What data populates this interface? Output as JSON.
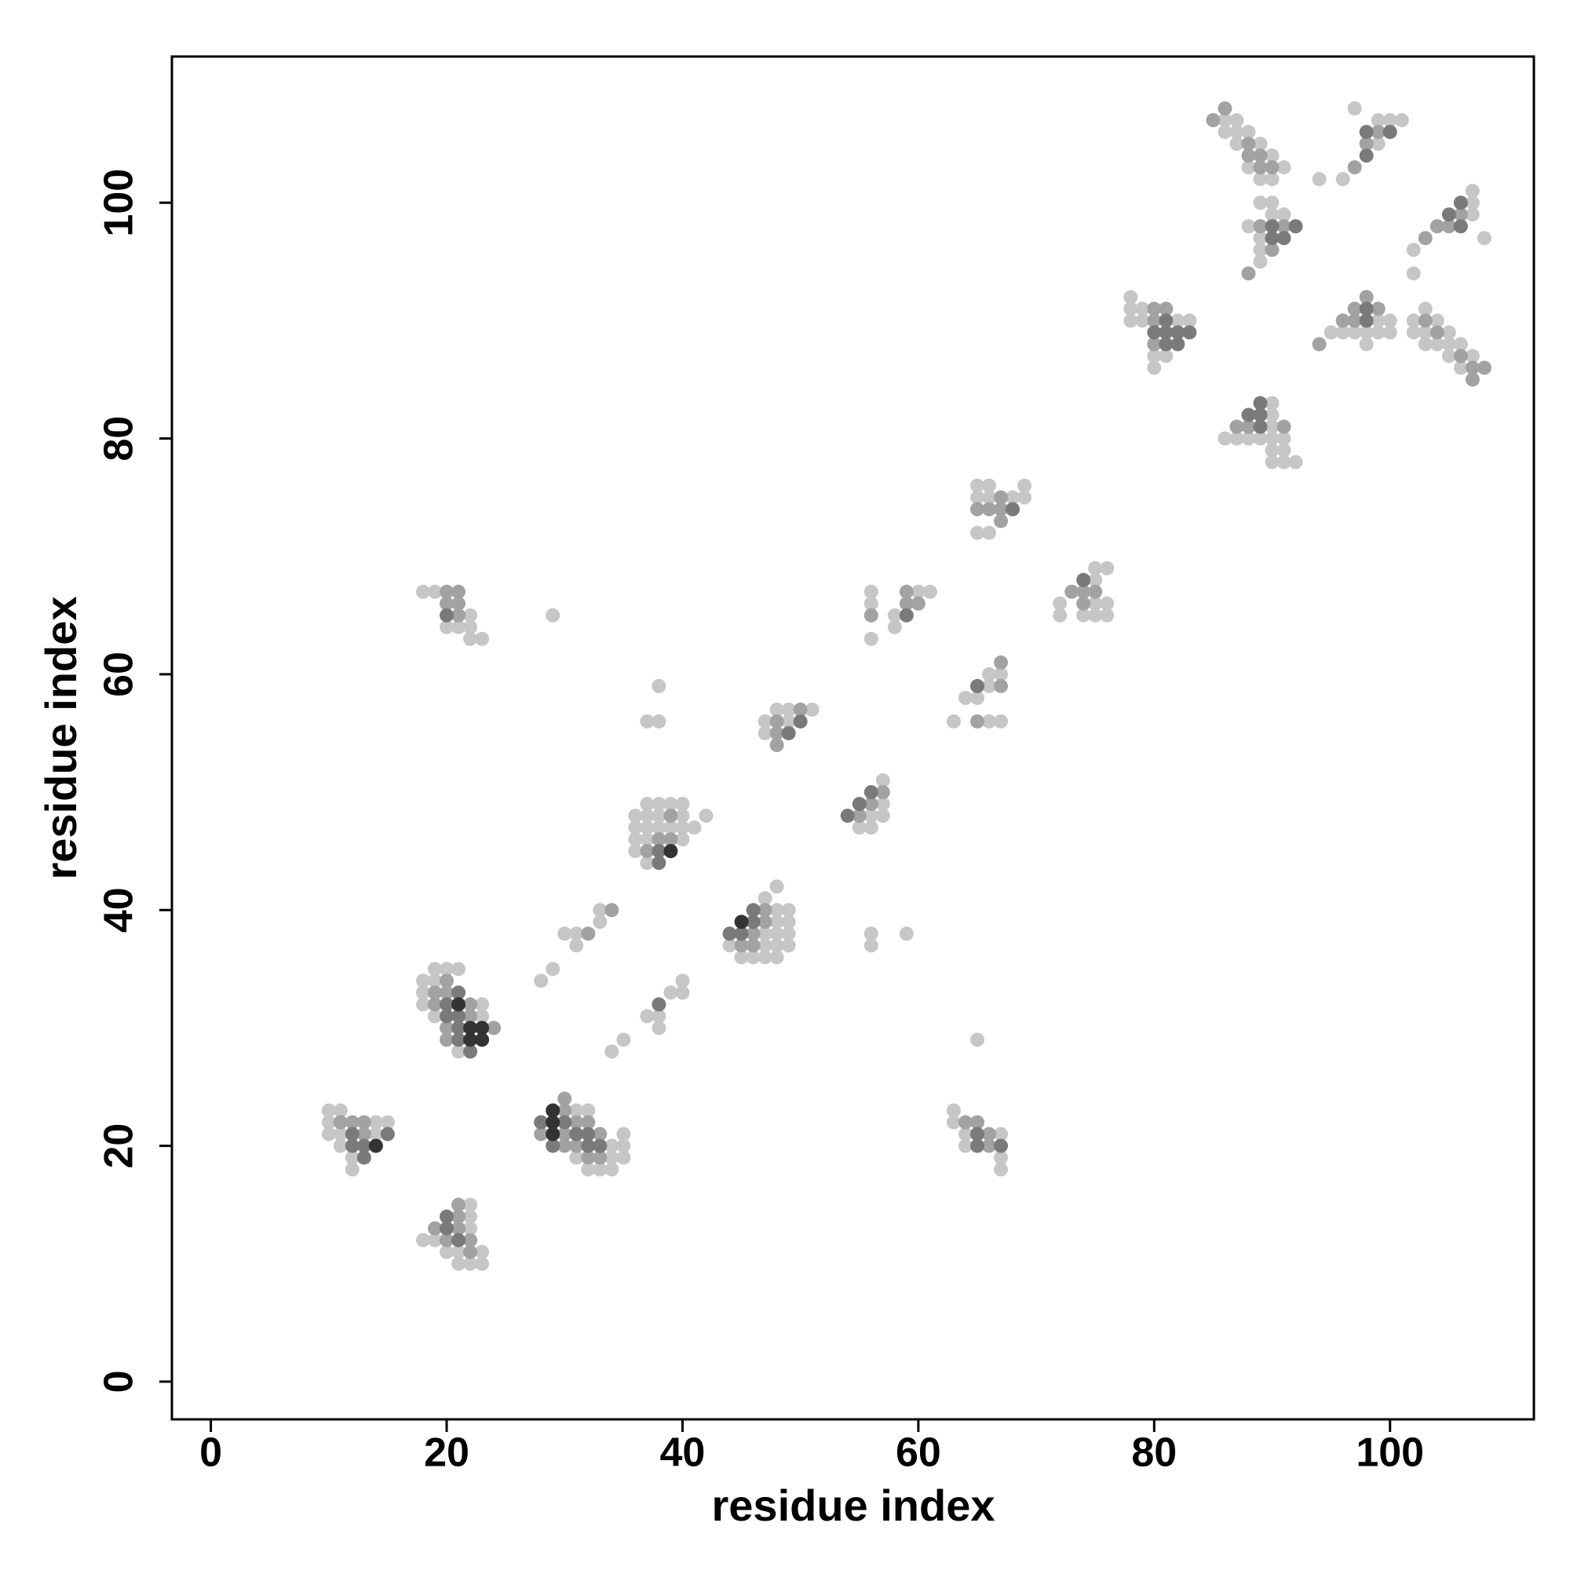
{
  "chart_data": {
    "type": "scatter",
    "xlabel": "residue index",
    "ylabel": "residue index",
    "xlim": [
      -3.3,
      112.2
    ],
    "ylim": [
      -3.2,
      112.4
    ],
    "xticks": [
      0,
      20,
      40,
      60,
      80,
      100
    ],
    "yticks": [
      0,
      20,
      40,
      60,
      80,
      100
    ],
    "series": [
      {
        "color": "#c6c6c6",
        "x": [
          10,
          11,
          10,
          14,
          15,
          10,
          11,
          14,
          11,
          12,
          12,
          22,
          22,
          22,
          18,
          19,
          20,
          21,
          23,
          21,
          22,
          23,
          19,
          20,
          21,
          18,
          19,
          18,
          18,
          23,
          19,
          23,
          21,
          18,
          19,
          22,
          20,
          21,
          22,
          22,
          23,
          29,
          31,
          32,
          35,
          34,
          35,
          31,
          34,
          35,
          32,
          33,
          34,
          28,
          29,
          30,
          31,
          31,
          33,
          33,
          34,
          35,
          37,
          38,
          38,
          39,
          40,
          40,
          37,
          38,
          39,
          40,
          36,
          37,
          38,
          40,
          42,
          36,
          37,
          38,
          39,
          40,
          41,
          36,
          37,
          40,
          36,
          37,
          37,
          38,
          38,
          48,
          47,
          48,
          49,
          48,
          49,
          47,
          48,
          49,
          44,
          47,
          48,
          49,
          45,
          46,
          47,
          48,
          48,
          49,
          51,
          47,
          49,
          47,
          57,
          57,
          56,
          57,
          55,
          56,
          56,
          56,
          59,
          65,
          56,
          56,
          56,
          58,
          58,
          60,
          61,
          63,
          64,
          65,
          66,
          66,
          67,
          66,
          67,
          63,
          63,
          64,
          64,
          67,
          67,
          67,
          65,
          66,
          65,
          66,
          68,
          69,
          69,
          65,
          66,
          72,
          72,
          74,
          75,
          75,
          75,
          75,
          76,
          76,
          76,
          78,
          78,
          78,
          79,
          79,
          80,
          80,
          81,
          82,
          83,
          86,
          87,
          88,
          89,
          90,
          90,
          90,
          90,
          90,
          90,
          91,
          91,
          91,
          92,
          86,
          86,
          87,
          87,
          87,
          88,
          88,
          89,
          89,
          90,
          90,
          91,
          88,
          89,
          89,
          89,
          89,
          90,
          90,
          91,
          95,
          96,
          97,
          98,
          98,
          99,
          99,
          100,
          100,
          94,
          96,
          97,
          99,
          99,
          100,
          101,
          102,
          102,
          107,
          107,
          107,
          108,
          102,
          102,
          103,
          103,
          103,
          104,
          104,
          105,
          105,
          105,
          106,
          106,
          107
        ],
        "values": [
          23,
          23,
          22,
          22,
          22,
          21,
          21,
          21,
          20,
          19,
          18,
          15,
          14,
          13,
          12,
          12,
          11,
          11,
          11,
          10,
          10,
          10,
          35,
          35,
          35,
          34,
          34,
          33,
          32,
          32,
          31,
          31,
          28,
          67,
          67,
          65,
          64,
          64,
          64,
          63,
          63,
          65,
          23,
          23,
          21,
          20,
          20,
          19,
          19,
          19,
          18,
          18,
          18,
          34,
          35,
          38,
          38,
          37,
          39,
          40,
          28,
          29,
          31,
          31,
          30,
          33,
          33,
          34,
          49,
          49,
          49,
          49,
          48,
          48,
          48,
          48,
          48,
          47,
          47,
          47,
          47,
          47,
          47,
          46,
          46,
          46,
          45,
          44,
          56,
          56,
          59,
          42,
          41,
          40,
          40,
          39,
          39,
          38,
          38,
          38,
          37,
          37,
          37,
          37,
          36,
          36,
          36,
          36,
          57,
          57,
          57,
          56,
          56,
          55,
          51,
          49,
          48,
          48,
          47,
          47,
          38,
          37,
          38,
          29,
          67,
          66,
          63,
          65,
          64,
          67,
          67,
          56,
          58,
          58,
          59,
          60,
          60,
          56,
          56,
          23,
          22,
          21,
          20,
          21,
          19,
          18,
          76,
          76,
          75,
          75,
          75,
          76,
          75,
          72,
          72,
          66,
          65,
          65,
          69,
          68,
          66,
          65,
          69,
          66,
          65,
          92,
          91,
          90,
          91,
          90,
          87,
          86,
          87,
          90,
          90,
          80,
          80,
          80,
          80,
          83,
          82,
          81,
          80,
          79,
          78,
          80,
          79,
          78,
          78,
          107,
          106,
          107,
          106,
          105,
          106,
          103,
          105,
          102,
          104,
          102,
          103,
          98,
          100,
          97,
          96,
          95,
          100,
          99,
          99,
          89,
          89,
          89,
          89,
          88,
          90,
          89,
          90,
          89,
          102,
          102,
          108,
          107,
          105,
          107,
          107,
          96,
          94,
          101,
          100,
          99,
          97,
          90,
          89,
          91,
          89,
          88,
          90,
          88,
          89,
          88,
          87,
          88,
          86,
          87
        ]
      },
      {
        "color": "#a2a2a2",
        "x": [
          11,
          12,
          13,
          13,
          21,
          21,
          19,
          21,
          20,
          22,
          22,
          20,
          19,
          20,
          19,
          22,
          22,
          20,
          24,
          20,
          20,
          21,
          20,
          21,
          21,
          30,
          30,
          31,
          32,
          28,
          30,
          33,
          30,
          31,
          32,
          33,
          32,
          34,
          39,
          38,
          39,
          37,
          47,
          47,
          46,
          45,
          46,
          50,
          48,
          48,
          48,
          57,
          56,
          55,
          56,
          59,
          59,
          60,
          67,
          67,
          65,
          64,
          65,
          66,
          66,
          67,
          65,
          66,
          67,
          67,
          73,
          74,
          74,
          75,
          80,
          80,
          80,
          81,
          87,
          88,
          91,
          85,
          86,
          88,
          88,
          89,
          89,
          90,
          88,
          89,
          90,
          91,
          94,
          96,
          97,
          97,
          98,
          99,
          97,
          98,
          99,
          103,
          104,
          105,
          106,
          103,
          104,
          106,
          107,
          107,
          108
        ],
        "values": [
          22,
          22,
          22,
          21,
          15,
          14,
          13,
          13,
          12,
          12,
          11,
          34,
          33,
          33,
          32,
          32,
          31,
          30,
          30,
          29,
          67,
          67,
          66,
          66,
          65,
          24,
          23,
          22,
          22,
          21,
          21,
          21,
          20,
          20,
          19,
          19,
          38,
          40,
          48,
          46,
          46,
          45,
          40,
          39,
          38,
          37,
          37,
          57,
          56,
          55,
          54,
          50,
          49,
          48,
          65,
          67,
          66,
          66,
          61,
          59,
          56,
          22,
          22,
          21,
          20,
          75,
          74,
          74,
          74,
          73,
          67,
          67,
          66,
          67,
          91,
          90,
          88,
          91,
          81,
          81,
          81,
          107,
          108,
          105,
          104,
          104,
          103,
          103,
          94,
          98,
          96,
          98,
          88,
          90,
          91,
          90,
          92,
          91,
          103,
          105,
          106,
          97,
          98,
          98,
          99,
          90,
          89,
          87,
          86,
          85,
          86
        ]
      },
      {
        "color": "#7a7a7a",
        "x": [
          12,
          15,
          12,
          13,
          13,
          20,
          20,
          21,
          21,
          20,
          20,
          21,
          21,
          21,
          22,
          20,
          28,
          30,
          31,
          32,
          29,
          32,
          33,
          38,
          38,
          38,
          46,
          46,
          44,
          45,
          50,
          49,
          56,
          55,
          54,
          59,
          65,
          65,
          65,
          67,
          68,
          74,
          80,
          81,
          81,
          81,
          82,
          82,
          83,
          88,
          89,
          89,
          89,
          90,
          90,
          91,
          92,
          98,
          98,
          98,
          98,
          100,
          105,
          106,
          106
        ],
        "values": [
          21,
          21,
          20,
          20,
          19,
          14,
          13,
          12,
          33,
          32,
          31,
          31,
          30,
          29,
          28,
          65,
          22,
          22,
          21,
          21,
          20,
          20,
          20,
          32,
          45,
          44,
          40,
          39,
          38,
          38,
          56,
          55,
          50,
          49,
          48,
          65,
          59,
          21,
          20,
          20,
          74,
          68,
          89,
          90,
          89,
          88,
          89,
          88,
          89,
          82,
          83,
          82,
          81,
          98,
          97,
          97,
          98,
          91,
          90,
          106,
          104,
          106,
          99,
          100,
          98
        ]
      },
      {
        "color": "#333333",
        "x": [
          14,
          21,
          22,
          23,
          22,
          23,
          29,
          29,
          29,
          39,
          45
        ],
        "values": [
          20,
          32,
          30,
          30,
          29,
          29,
          23,
          22,
          21,
          45,
          39
        ]
      }
    ]
  }
}
